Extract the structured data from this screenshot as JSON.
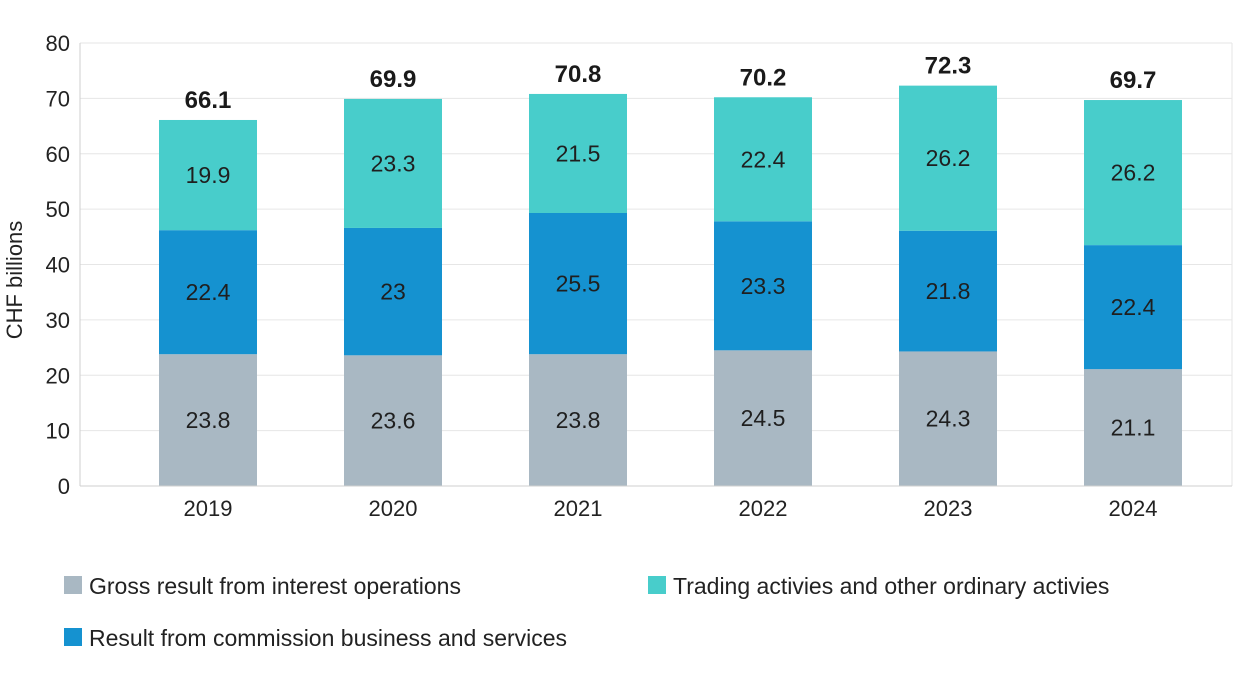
{
  "chart_data": {
    "type": "bar",
    "stacked": true,
    "title": "",
    "xlabel": "",
    "ylabel": "CHF billions",
    "ylim": [
      0,
      80
    ],
    "yticks": [
      0,
      10,
      20,
      30,
      40,
      50,
      60,
      70,
      80
    ],
    "grid": true,
    "legend_position": "bottom",
    "categories": [
      "2019",
      "2020",
      "2021",
      "2022",
      "2023",
      "2024"
    ],
    "series": [
      {
        "name": "Gross result from interest operations",
        "color": "#a9b8c3",
        "values": [
          23.8,
          23.6,
          23.8,
          24.5,
          24.3,
          21.1
        ],
        "labels": [
          "23.8",
          "23.6",
          "23.8",
          "24.5",
          "24.3",
          "21.1"
        ]
      },
      {
        "name": "Result from commission business and services",
        "color": "#1592d0",
        "values": [
          22.4,
          23.0,
          25.5,
          23.3,
          21.8,
          22.4
        ],
        "labels": [
          "22.4",
          "23",
          "25.5",
          "23.3",
          "21.8",
          "22.4"
        ]
      },
      {
        "name": "Trading activies and other ordinary activies",
        "color": "#48cdcb",
        "values": [
          19.9,
          23.3,
          21.5,
          22.4,
          26.2,
          26.2
        ],
        "labels": [
          "19.9",
          "23.3",
          "21.5",
          "22.4",
          "26.2",
          "26.2"
        ]
      }
    ],
    "totals": [
      66.1,
      69.9,
      70.8,
      70.2,
      72.3,
      69.7
    ],
    "total_labels": [
      "66.1",
      "69.9",
      "70.8",
      "70.2",
      "72.3",
      "69.7"
    ],
    "legend_order": [
      0,
      2,
      1
    ]
  }
}
